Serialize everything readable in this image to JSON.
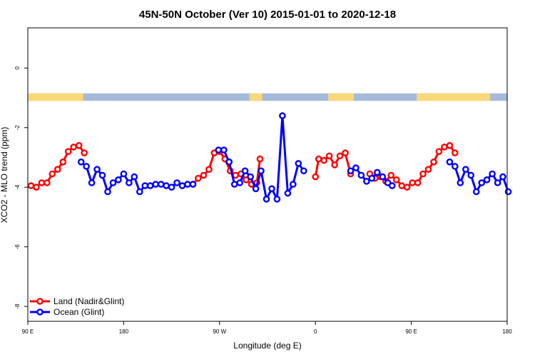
{
  "chart_data": {
    "type": "line",
    "title": "45N-50N October (Ver 10)   2015-01-01 to 2020-12-18",
    "xlabel": "Longitude (deg E)",
    "ylabel": "XCO2 - MLO trend (ppm)",
    "xlim": [
      90,
      540
    ],
    "ylim": [
      -8.5,
      1.35
    ],
    "x_ticks": [
      {
        "value": 90,
        "label": "90 E"
      },
      {
        "value": 180,
        "label": "180"
      },
      {
        "value": 270,
        "label": "90 W"
      },
      {
        "value": 360,
        "label": "0"
      },
      {
        "value": 450,
        "label": "90 E"
      },
      {
        "value": 540,
        "label": "180"
      }
    ],
    "y_ticks": [
      {
        "value": 0,
        "label": "0"
      },
      {
        "value": -2,
        "label": "-2"
      },
      {
        "value": -4,
        "label": "-4"
      },
      {
        "value": -6,
        "label": "-6"
      },
      {
        "value": -8,
        "label": "-8"
      }
    ],
    "legend_position": "bottom-left",
    "land_sea_strip": {
      "y_range": [
        -1.1,
        -0.85
      ],
      "ocean_color": "#a5b9da",
      "land_color": "#f8d878",
      "land_x_ranges": [
        [
          90,
          142
        ],
        [
          298,
          310
        ],
        [
          372,
          396
        ],
        [
          455,
          524
        ]
      ]
    },
    "series": [
      {
        "name": "Land (Nadir&Glint)",
        "color": "#ff0000",
        "segments": [
          [
            [
              93,
              -3.95
            ],
            [
              98,
              -4.0
            ],
            [
              103,
              -3.85
            ],
            [
              108,
              -3.85
            ],
            [
              113,
              -3.55
            ],
            [
              118,
              -3.4
            ],
            [
              123,
              -3.15
            ],
            [
              128,
              -2.8
            ],
            [
              133,
              -2.65
            ],
            [
              138,
              -2.6
            ],
            [
              143,
              -2.85
            ]
          ],
          [
            [
              240,
              -3.9
            ],
            [
              245,
              -3.9
            ],
            [
              250,
              -3.7
            ],
            [
              255,
              -3.6
            ],
            [
              260,
              -3.4
            ],
            [
              265,
              -2.85
            ],
            [
              270,
              -2.8
            ],
            [
              275,
              -3.05
            ],
            [
              280,
              -3.45
            ],
            [
              285,
              -3.6
            ],
            [
              290,
              -3.55
            ],
            [
              295,
              -3.75
            ],
            [
              300,
              -3.9
            ],
            [
              305,
              -3.85
            ],
            [
              308,
              -3.05
            ]
          ],
          [
            [
              360,
              -3.65
            ],
            [
              363,
              -3.05
            ],
            [
              368,
              -3.1
            ],
            [
              373,
              -2.95
            ],
            [
              378,
              -3.25
            ],
            [
              383,
              -2.95
            ],
            [
              388,
              -2.85
            ],
            [
              393,
              -3.55
            ]
          ],
          [
            [
              411,
              -3.55
            ],
            [
              416,
              -3.7
            ],
            [
              421,
              -3.65
            ],
            [
              426,
              -3.8
            ],
            [
              431,
              -3.6
            ],
            [
              436,
              -3.75
            ],
            [
              441,
              -3.95
            ],
            [
              446,
              -4.0
            ],
            [
              451,
              -3.85
            ],
            [
              456,
              -3.85
            ],
            [
              461,
              -3.55
            ],
            [
              466,
              -3.4
            ],
            [
              471,
              -3.15
            ],
            [
              476,
              -2.8
            ],
            [
              481,
              -2.65
            ],
            [
              486,
              -2.6
            ],
            [
              491,
              -2.85
            ]
          ]
        ]
      },
      {
        "name": "Ocean (Glint)",
        "color": "#0000ff",
        "segments": [
          [
            [
              140,
              -3.15
            ],
            [
              145,
              -3.3
            ],
            [
              150,
              -3.85
            ],
            [
              155,
              -3.4
            ],
            [
              160,
              -3.6
            ],
            [
              165,
              -4.15
            ],
            [
              170,
              -3.85
            ],
            [
              175,
              -3.75
            ],
            [
              180,
              -3.55
            ],
            [
              185,
              -3.85
            ],
            [
              190,
              -3.65
            ],
            [
              195,
              -4.15
            ],
            [
              200,
              -3.95
            ],
            [
              205,
              -3.95
            ],
            [
              210,
              -3.9
            ],
            [
              215,
              -3.9
            ],
            [
              220,
              -3.95
            ],
            [
              225,
              -4.0
            ],
            [
              230,
              -3.85
            ],
            [
              235,
              -3.95
            ],
            [
              240,
              -3.9
            ],
            [
              245,
              -3.9
            ]
          ],
          [
            [
              269,
              -2.75
            ],
            [
              274,
              -2.75
            ],
            [
              279,
              -3.15
            ],
            [
              284,
              -3.9
            ],
            [
              289,
              -3.85
            ],
            [
              294,
              -3.45
            ],
            [
              299,
              -3.65
            ],
            [
              304,
              -4.05
            ],
            [
              309,
              -3.45
            ],
            [
              314,
              -4.4
            ],
            [
              319,
              -4.05
            ],
            [
              324,
              -4.4
            ],
            [
              329,
              -1.6
            ],
            [
              334,
              -4.2
            ],
            [
              339,
              -3.9
            ],
            [
              344,
              -3.2
            ],
            [
              349,
              -3.45
            ]
          ],
          [
            [
              393,
              -3.45
            ],
            [
              398,
              -3.35
            ],
            [
              403,
              -3.6
            ],
            [
              408,
              -3.8
            ],
            [
              413,
              -3.7
            ],
            [
              418,
              -3.5
            ],
            [
              423,
              -3.65
            ],
            [
              428,
              -3.85
            ],
            [
              432,
              -3.95
            ]
          ],
          [
            [
              486,
              -3.15
            ],
            [
              491,
              -3.3
            ],
            [
              496,
              -3.85
            ],
            [
              501,
              -3.4
            ],
            [
              506,
              -3.6
            ],
            [
              511,
              -4.15
            ],
            [
              516,
              -3.85
            ],
            [
              521,
              -3.75
            ],
            [
              526,
              -3.55
            ],
            [
              531,
              -3.85
            ],
            [
              536,
              -3.65
            ],
            [
              541,
              -4.15
            ]
          ]
        ]
      }
    ]
  }
}
